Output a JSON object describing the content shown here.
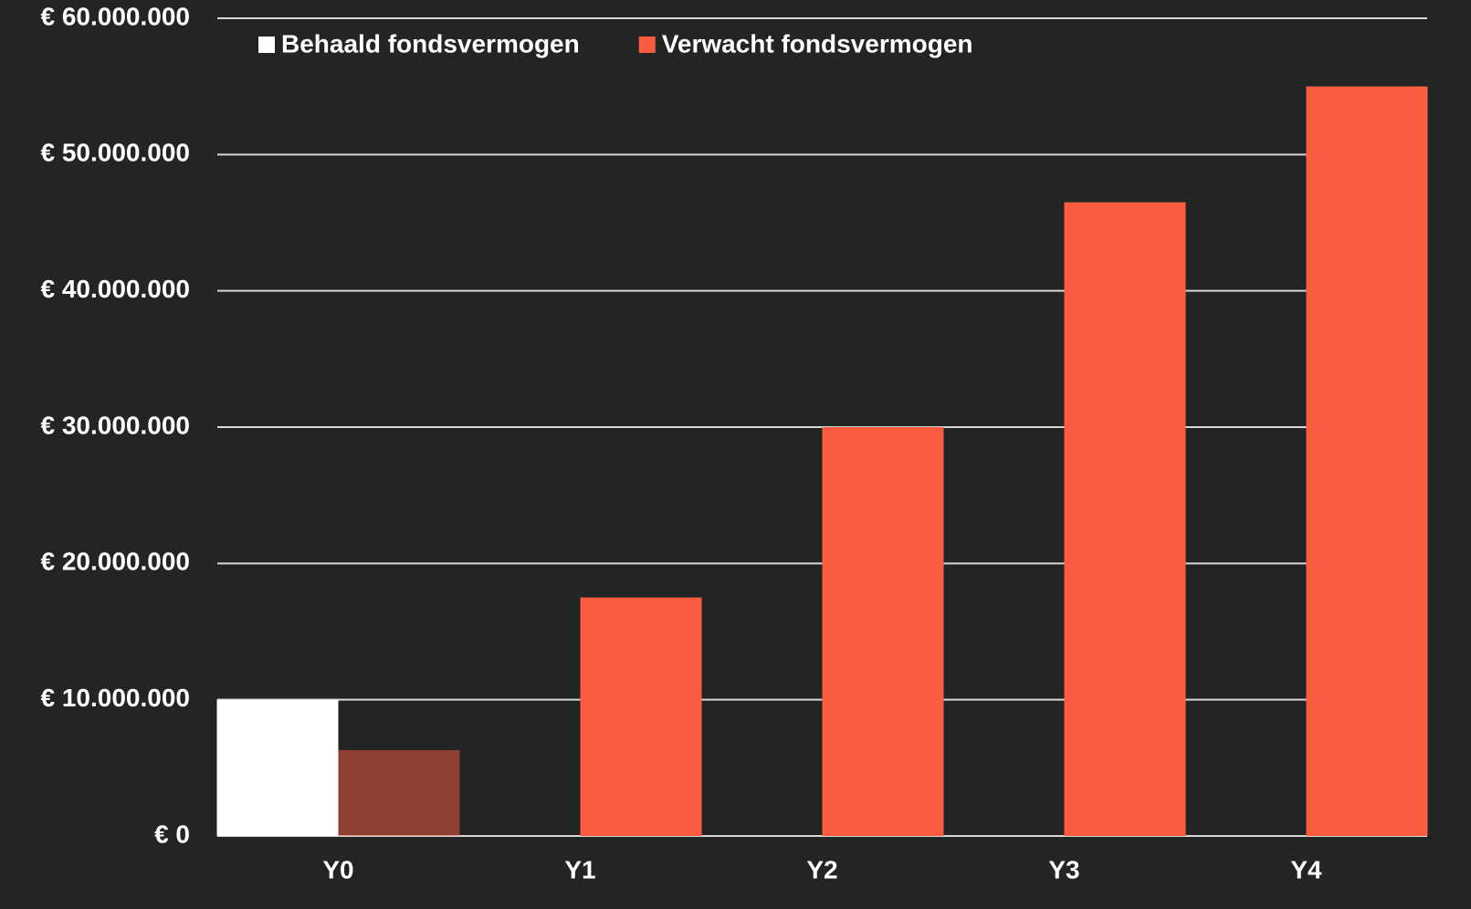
{
  "chart_data": {
    "type": "bar",
    "categories": [
      "Y0",
      "Y1",
      "Y2",
      "Y3",
      "Y4"
    ],
    "series": [
      {
        "name": "Behaald fondsvermogen",
        "color": "#ffffff",
        "values": [
          10000000,
          null,
          null,
          null,
          null
        ]
      },
      {
        "name": "Verwacht fondsvermogen",
        "color": "#f95c3f",
        "point_colors": [
          "rgba(249,92,63,0.5)",
          "#f95c3f",
          "#f95c3f",
          "#f95c3f",
          "#f95c3f"
        ],
        "values": [
          6300000,
          17500000,
          30000000,
          46500000,
          55000000
        ]
      }
    ],
    "ylim": [
      0,
      60000000
    ],
    "yticks": [
      {
        "value": 0,
        "label": "€ 0"
      },
      {
        "value": 10000000,
        "label": "€ 10.000.000"
      },
      {
        "value": 20000000,
        "label": "€ 20.000.000"
      },
      {
        "value": 30000000,
        "label": "€ 30.000.000"
      },
      {
        "value": 40000000,
        "label": "€ 40.000.000"
      },
      {
        "value": 50000000,
        "label": "€ 50.000.000"
      },
      {
        "value": 60000000,
        "label": "€ 60.000.000"
      }
    ],
    "grid": true,
    "legend": "top-left"
  }
}
